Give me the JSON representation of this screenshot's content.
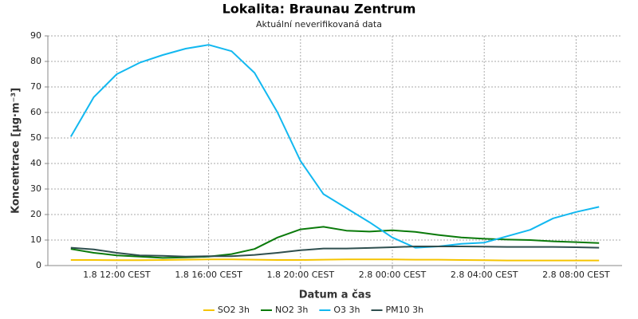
{
  "chart_data": {
    "type": "line",
    "title": "Lokalita: Braunau Zentrum",
    "subtitle": "Aktuální neverifikovaná data",
    "x_label": "Datum a čas",
    "y_label": "Koncentrace [µg·m⁻³]",
    "x": [
      "1.8 10:00 CEST",
      "1.8 11:00 CEST",
      "1.8 12:00 CEST",
      "1.8 13:00 CEST",
      "1.8 14:00 CEST",
      "1.8 15:00 CEST",
      "1.8 16:00 CEST",
      "1.8 17:00 CEST",
      "1.8 18:00 CEST",
      "1.8 19:00 CEST",
      "1.8 20:00 CEST",
      "1.8 21:00 CEST",
      "1.8 22:00 CEST",
      "1.8 23:00 CEST",
      "2.8 00:00 CEST",
      "2.8 01:00 CEST",
      "2.8 02:00 CEST",
      "2.8 03:00 CEST",
      "2.8 04:00 CEST",
      "2.8 05:00 CEST",
      "2.8 06:00 CEST",
      "2.8 07:00 CEST",
      "2.8 08:00 CEST",
      "2.8 09:00 CEST"
    ],
    "xlim": [
      "1.8 09:00 CEST",
      "2.8 10:00 CEST"
    ],
    "xticks": [
      "1.8 12:00 CEST",
      "1.8 16:00 CEST",
      "1.8 20:00 CEST",
      "2.8 00:00 CEST",
      "2.8 04:00 CEST",
      "2.8 08:00 CEST"
    ],
    "ylim": [
      0,
      90
    ],
    "yticks": [
      0,
      10,
      20,
      30,
      40,
      50,
      60,
      70,
      80,
      90
    ],
    "grid": true,
    "legend": "bottom",
    "series": [
      {
        "name": "SO2 3h",
        "color": "#f5c400",
        "values": [
          2.2,
          2.2,
          2.1,
          2.1,
          2.2,
          2.3,
          2.4,
          2.4,
          2.3,
          2.2,
          2.2,
          2.3,
          2.4,
          2.4,
          2.4,
          2.3,
          2.3,
          2.2,
          2.1,
          2.0,
          2.0,
          2.0,
          2.0,
          2.0
        ]
      },
      {
        "name": "NO2 3h",
        "color": "#0a7a0a",
        "values": [
          6.5,
          5,
          4,
          3.5,
          3,
          3.2,
          3.5,
          4.5,
          6.5,
          11,
          14.2,
          15.2,
          13.7,
          13.3,
          13.8,
          13.2,
          12,
          11,
          10.5,
          10.2,
          10,
          9.5,
          9.2,
          8.8
        ]
      },
      {
        "name": "O3 3h",
        "color": "#12b8f0",
        "values": [
          50.5,
          66,
          75,
          79.5,
          82.5,
          85,
          86.5,
          84,
          75.5,
          60,
          41,
          28,
          22.5,
          17,
          11,
          7,
          7.5,
          8.5,
          9,
          11.5,
          14,
          18.5,
          21,
          23
        ]
      },
      {
        "name": "PM10 3h",
        "color": "#2f4f4f",
        "values": [
          7,
          6.3,
          5,
          4,
          3.8,
          3.5,
          3.7,
          3.7,
          4.2,
          5,
          6,
          6.7,
          6.7,
          6.9,
          7.2,
          7.5,
          7.5,
          7.5,
          7.4,
          7.3,
          7.3,
          7.3,
          7.2,
          7
        ]
      }
    ]
  }
}
